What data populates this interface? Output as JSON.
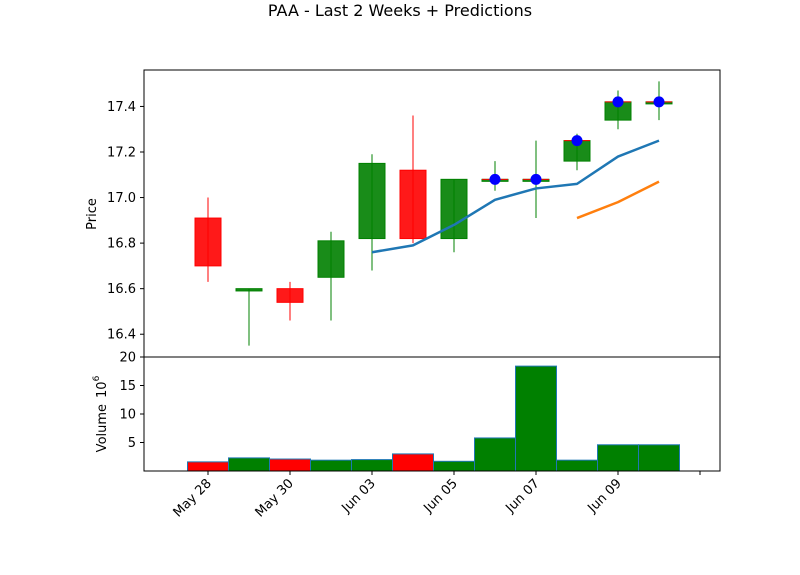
{
  "chart_data": {
    "type": "candlestick",
    "title": "PAA - Last 2 Weeks + Predictions",
    "price_panel": {
      "ylabel": "Price",
      "ylim": [
        16.3,
        17.56
      ],
      "yticks": [
        "16.4",
        "16.6",
        "16.8",
        "17.0",
        "17.2",
        "17.4"
      ],
      "candles": [
        {
          "date": "May 28",
          "open": 16.91,
          "high": 17.0,
          "low": 16.63,
          "close": 16.7
        },
        {
          "date": "May 29",
          "open": 16.59,
          "high": 16.6,
          "low": 16.35,
          "close": 16.6
        },
        {
          "date": "May 30",
          "open": 16.6,
          "high": 16.63,
          "low": 16.46,
          "close": 16.54
        },
        {
          "date": "May 31",
          "open": 16.65,
          "high": 16.85,
          "low": 16.46,
          "close": 16.81
        },
        {
          "date": "Jun 03",
          "open": 16.82,
          "high": 17.19,
          "low": 16.68,
          "close": 17.15
        },
        {
          "date": "Jun 04",
          "open": 17.12,
          "high": 17.36,
          "low": 16.8,
          "close": 16.82
        },
        {
          "date": "Jun 05",
          "open": 16.82,
          "high": 17.08,
          "low": 16.76,
          "close": 17.08
        },
        {
          "date": "Jun 06",
          "open": 17.08,
          "high": 17.16,
          "low": 17.03,
          "close": 17.08
        },
        {
          "date": "Jun 07",
          "open": 17.08,
          "high": 17.25,
          "low": 16.91,
          "close": 17.08
        },
        {
          "date": "Jun 08",
          "open": 17.16,
          "high": 17.28,
          "low": 17.12,
          "close": 17.25
        },
        {
          "date": "Jun 09",
          "open": 17.34,
          "high": 17.47,
          "low": 17.3,
          "close": 17.42
        },
        {
          "date": "Jun 10",
          "open": 17.42,
          "high": 17.51,
          "low": 17.34,
          "close": 17.42
        }
      ],
      "prediction_points": [
        {
          "date": "Jun 06",
          "value": 17.08
        },
        {
          "date": "Jun 07",
          "value": 17.08
        },
        {
          "date": "Jun 08",
          "value": 17.25
        },
        {
          "date": "Jun 09",
          "value": 17.42
        },
        {
          "date": "Jun 10",
          "value": 17.42
        }
      ],
      "series": [
        {
          "color": "#1f77b4",
          "points": [
            [
              "Jun 03",
              16.76
            ],
            [
              "Jun 04",
              16.79
            ],
            [
              "Jun 05",
              16.88
            ],
            [
              "Jun 06",
              16.99
            ],
            [
              "Jun 07",
              17.04
            ],
            [
              "Jun 08",
              17.06
            ],
            [
              "Jun 09",
              17.18
            ],
            [
              "Jun 10",
              17.25
            ]
          ]
        },
        {
          "color": "#ff7f0e",
          "points": [
            [
              "Jun 08",
              16.91
            ],
            [
              "Jun 09",
              16.98
            ],
            [
              "Jun 10",
              17.07
            ]
          ]
        }
      ]
    },
    "volume_panel": {
      "ylabel": "Volume",
      "scale_label": "10",
      "scale_exponent": "6",
      "ylim": [
        0,
        20
      ],
      "yticks": [
        "5",
        "10",
        "15",
        "20"
      ],
      "bars": [
        {
          "date": "May 28",
          "value": 1.6
        },
        {
          "date": "May 29",
          "value": 2.3
        },
        {
          "date": "May 30",
          "value": 2.1
        },
        {
          "date": "May 31",
          "value": 1.9
        },
        {
          "date": "Jun 03",
          "value": 2.0
        },
        {
          "date": "Jun 04",
          "value": 3.0
        },
        {
          "date": "Jun 05",
          "value": 1.7
        },
        {
          "date": "Jun 06",
          "value": 5.8
        },
        {
          "date": "Jun 07",
          "value": 18.4
        },
        {
          "date": "Jun 08",
          "value": 1.9
        },
        {
          "date": "Jun 09",
          "value": 4.6
        },
        {
          "date": "Jun 10",
          "value": 4.6
        }
      ]
    },
    "xticks": [
      "May 28",
      "May 30",
      "Jun 03",
      "Jun 05",
      "Jun 07",
      "Jun 09",
      ""
    ],
    "colors": {
      "up": "#008000",
      "down": "#ff0000",
      "marker": "#0000ff",
      "cross": "#ff0000"
    },
    "grid": false
  }
}
